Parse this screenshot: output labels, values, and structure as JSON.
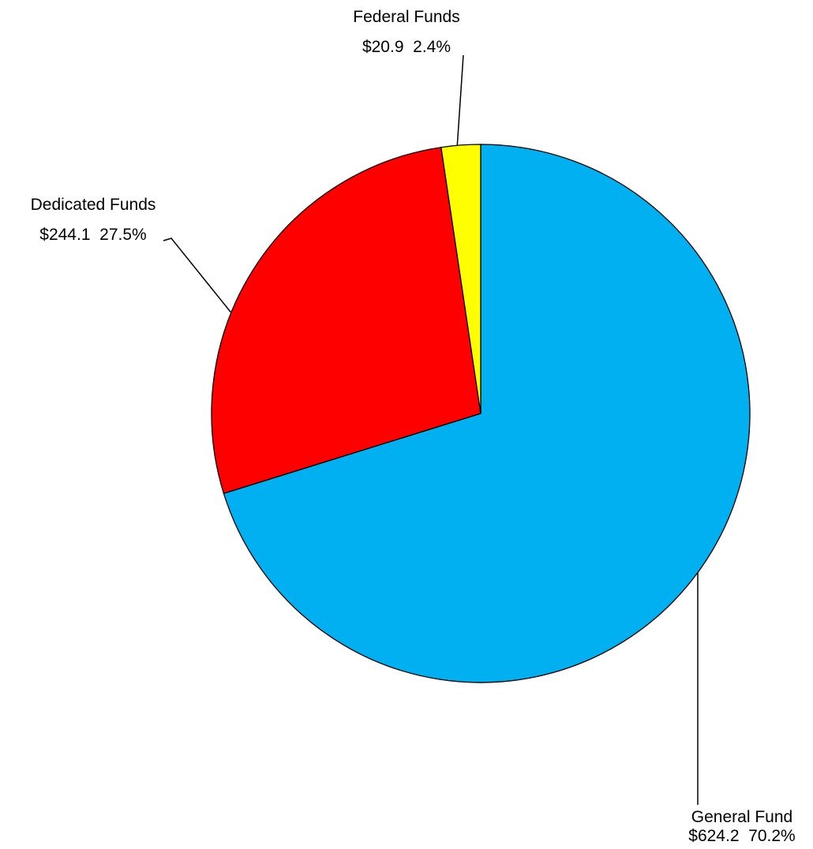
{
  "chart_data": {
    "type": "pie",
    "start_angle": "12 o'clock, clockwise",
    "slices": [
      {
        "label": "General Fund",
        "value": 624.2,
        "value_label": "$624.2",
        "percent_label": "70.2%",
        "color": "#00B0F0"
      },
      {
        "label": "Dedicated Funds",
        "value": 244.1,
        "value_label": "$244.1",
        "percent_label": "27.5%",
        "color": "#FF0000"
      },
      {
        "label": "Federal Funds",
        "value": 20.9,
        "value_label": "$20.9",
        "percent_label": "2.4%",
        "color": "#FFFF00"
      }
    ],
    "legend": "none",
    "title": ""
  }
}
